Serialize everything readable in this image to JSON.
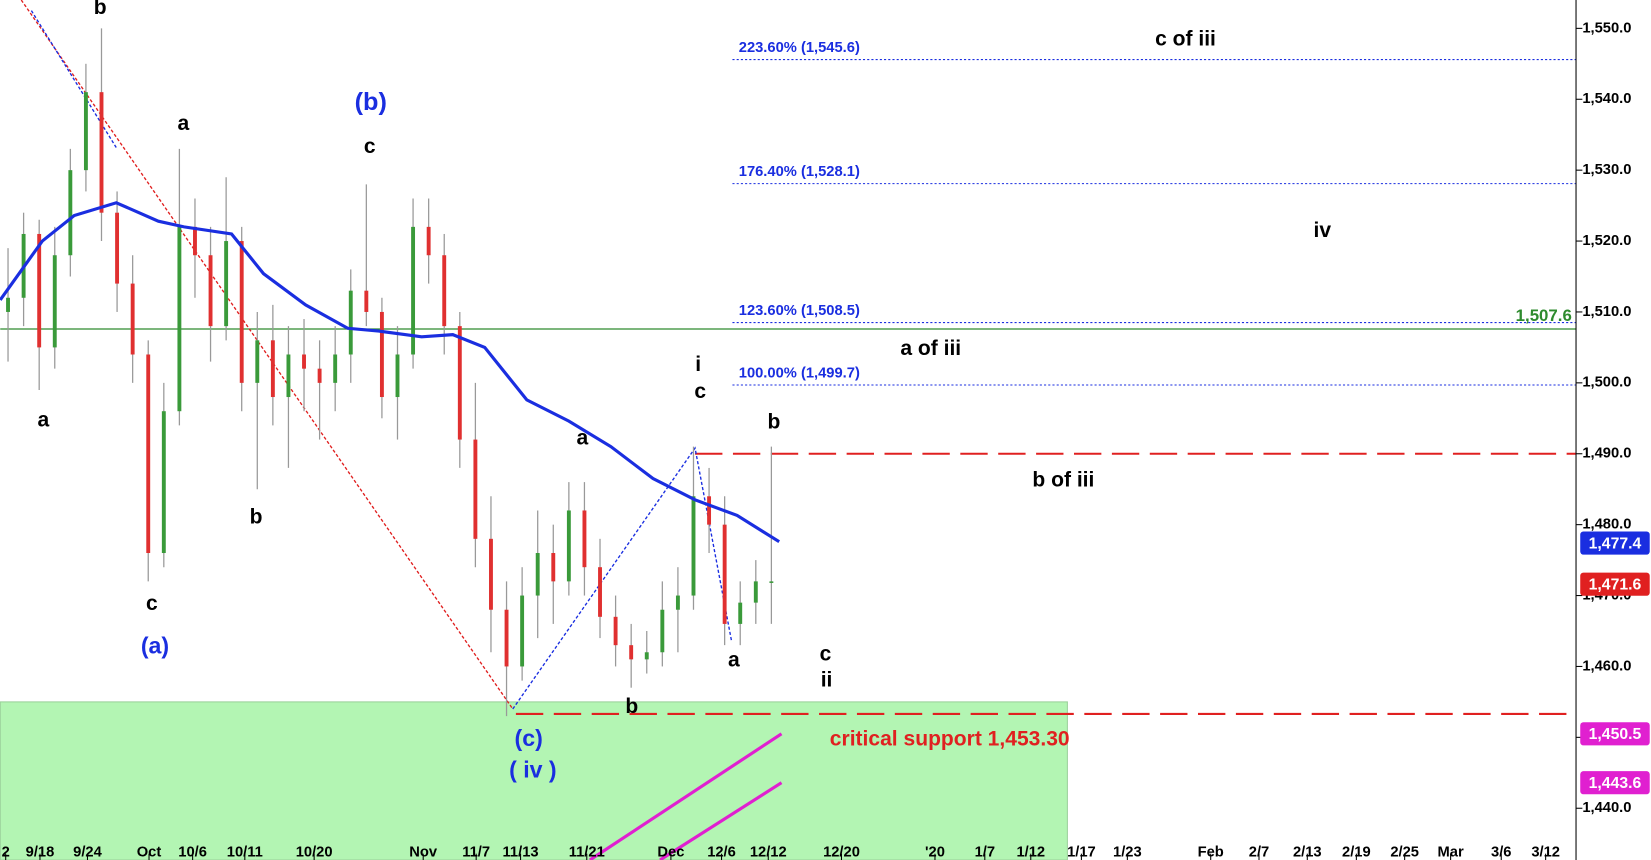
{
  "chart_data": {
    "type": "candlestick",
    "x": [
      1,
      3,
      5,
      7,
      9,
      11,
      13,
      15,
      17,
      19,
      21,
      23,
      25,
      27,
      29,
      31,
      33,
      35,
      37,
      39,
      41,
      43,
      45,
      47,
      49,
      51,
      53,
      55,
      57,
      59,
      61,
      63,
      65,
      67,
      69,
      71,
      73,
      75,
      77,
      79,
      81,
      83,
      85,
      87,
      89,
      91,
      93,
      95,
      97,
      99
    ],
    "candles": [
      [
        1510,
        1519,
        1503,
        1512
      ],
      [
        1512,
        1524,
        1508,
        1521
      ],
      [
        1521,
        1523,
        1499,
        1505
      ],
      [
        1505,
        1522,
        1502,
        1518
      ],
      [
        1518,
        1533,
        1515,
        1530
      ],
      [
        1530,
        1545,
        1527,
        1541
      ],
      [
        1541,
        1550,
        1520,
        1524
      ],
      [
        1524,
        1527,
        1510,
        1514
      ],
      [
        1514,
        1518,
        1500,
        1504
      ],
      [
        1504,
        1506,
        1472,
        1476
      ],
      [
        1476,
        1500,
        1474,
        1496
      ],
      [
        1496,
        1533,
        1494,
        1522
      ],
      [
        1522,
        1526,
        1512,
        1518
      ],
      [
        1518,
        1522,
        1503,
        1508
      ],
      [
        1508,
        1529,
        1506,
        1520
      ],
      [
        1520,
        1522,
        1496,
        1500
      ],
      [
        1500,
        1510,
        1485,
        1506
      ],
      [
        1506,
        1511,
        1494,
        1498
      ],
      [
        1498,
        1508,
        1488,
        1504
      ],
      [
        1504,
        1509,
        1496,
        1502
      ],
      [
        1502,
        1506,
        1492,
        1500
      ],
      [
        1500,
        1508,
        1496,
        1504
      ],
      [
        1504,
        1516,
        1500,
        1513
      ],
      [
        1513,
        1528,
        1508,
        1510
      ],
      [
        1510,
        1512,
        1495,
        1498
      ],
      [
        1498,
        1508,
        1492,
        1504
      ],
      [
        1504,
        1526,
        1502,
        1522
      ],
      [
        1522,
        1526,
        1514,
        1518
      ],
      [
        1518,
        1521,
        1504,
        1508
      ],
      [
        1508,
        1510,
        1488,
        1492
      ],
      [
        1492,
        1500,
        1474,
        1478
      ],
      [
        1478,
        1484,
        1462,
        1468
      ],
      [
        1468,
        1472,
        1453,
        1460
      ],
      [
        1460,
        1474,
        1458,
        1470
      ],
      [
        1470,
        1482,
        1464,
        1476
      ],
      [
        1476,
        1480,
        1466,
        1472
      ],
      [
        1472,
        1486,
        1470,
        1482
      ],
      [
        1482,
        1486,
        1470,
        1474
      ],
      [
        1474,
        1478,
        1464,
        1467
      ],
      [
        1467,
        1470,
        1460,
        1463
      ],
      [
        1463,
        1466,
        1457,
        1461
      ],
      [
        1461,
        1465,
        1459,
        1462
      ],
      [
        1462,
        1472,
        1460,
        1468
      ],
      [
        1468,
        1474,
        1462,
        1470
      ],
      [
        1470,
        1491,
        1468,
        1484
      ],
      [
        1484,
        1488,
        1476,
        1480
      ],
      [
        1480,
        1484,
        1463,
        1466
      ],
      [
        1466,
        1472,
        1463,
        1469
      ],
      [
        1469,
        1475,
        1466,
        1472
      ],
      [
        1472,
        1491,
        1466,
        1472
      ]
    ],
    "up_color": "#3a9a3a",
    "down_color": "#e03030",
    "wick_color": "#999999",
    "xlim": [
      0,
      202.3
    ],
    "ylim": [
      1432.7,
      1554
    ],
    "xticks": [
      {
        "value": 0.7,
        "label": "2"
      },
      {
        "value": 5.1,
        "label": "9/18"
      },
      {
        "value": 11.2,
        "label": "9/24"
      },
      {
        "value": 19.1,
        "label": "Oct"
      },
      {
        "value": 24.7,
        "label": "10/6"
      },
      {
        "value": 31.4,
        "label": "10/11"
      },
      {
        "value": 40.3,
        "label": "10/20"
      },
      {
        "value": 54.3,
        "label": "Nov"
      },
      {
        "value": 61.1,
        "label": "11/7"
      },
      {
        "value": 66.8,
        "label": "11/13"
      },
      {
        "value": 75.3,
        "label": "11/21"
      },
      {
        "value": 86.1,
        "label": "Dec"
      },
      {
        "value": 92.6,
        "label": "12/6"
      },
      {
        "value": 98.6,
        "label": "12/12"
      },
      {
        "value": 108,
        "label": "12/20"
      },
      {
        "value": 120,
        "label": "'20"
      },
      {
        "value": 126.4,
        "label": "1/7"
      },
      {
        "value": 132.3,
        "label": "1/12"
      },
      {
        "value": 138.8,
        "label": "1/17"
      },
      {
        "value": 144.7,
        "label": "1/23"
      },
      {
        "value": 155.4,
        "label": "Feb"
      },
      {
        "value": 161.6,
        "label": "2/7"
      },
      {
        "value": 167.8,
        "label": "2/13"
      },
      {
        "value": 174.1,
        "label": "2/19"
      },
      {
        "value": 180.3,
        "label": "2/25"
      },
      {
        "value": 186.2,
        "label": "Mar"
      },
      {
        "value": 192.7,
        "label": "3/6"
      },
      {
        "value": 198.4,
        "label": "3/12"
      }
    ],
    "yticks": [
      {
        "value": 1440,
        "label": "1,440.0"
      },
      {
        "value": 1450,
        "label": "1,450.0"
      },
      {
        "value": 1460,
        "label": "1,460.0"
      },
      {
        "value": 1470,
        "label": "1,470.0"
      },
      {
        "value": 1480,
        "label": "1,480.0"
      },
      {
        "value": 1490,
        "label": "1,490.0"
      },
      {
        "value": 1500,
        "label": "1,500.0"
      },
      {
        "value": 1510,
        "label": "1,510.0"
      },
      {
        "value": 1520,
        "label": "1,520.0"
      },
      {
        "value": 1530,
        "label": "1,530.0"
      },
      {
        "value": 1540,
        "label": "1,540.0"
      },
      {
        "value": 1550,
        "label": "1,550.0"
      }
    ],
    "ma": {
      "color": "#1a2ee0",
      "x": [
        0,
        5.4,
        9.5,
        14.9,
        20.3,
        23.6,
        29.7,
        33.8,
        39.2,
        44.6,
        48.6,
        54.1,
        58.1,
        62.2,
        67.6,
        73,
        78.4,
        83.8,
        89.2,
        94.6,
        100
      ],
      "values": [
        1511.7,
        1520,
        1523.6,
        1525.4,
        1522.8,
        1522,
        1521,
        1515.4,
        1511,
        1507.7,
        1507.3,
        1506.5,
        1506.8,
        1505,
        1497.6,
        1494.6,
        1491,
        1486.5,
        1483.5,
        1481.3,
        1477.6
      ]
    },
    "zone": {
      "color": "#b3f5b3",
      "x": [
        0,
        137
      ],
      "y": [
        1432.7,
        1455
      ]
    },
    "levels": [
      {
        "value": 1507.6,
        "label": "1,507.6",
        "color": "#2e8b2e",
        "style": "solid",
        "from": 0
      },
      {
        "value": 1490,
        "color": "#e02020",
        "style": "dashed",
        "from": 89.2
      },
      {
        "value": 1453.3,
        "color": "#e02020",
        "style": "dashed",
        "from": 66.2
      }
    ],
    "fib_levels": [
      {
        "value": 1545.6,
        "label": "223.60% (1,545.6)"
      },
      {
        "value": 1528.1,
        "label": "176.40% (1,528.1)"
      },
      {
        "value": 1508.5,
        "label": "123.60% (1,508.5)"
      },
      {
        "value": 1499.7,
        "label": "100.00% (1,499.7)"
      }
    ],
    "fib_color": "#1a2ee0",
    "fib_from": 94,
    "trendlines": [
      {
        "color": "#e02020",
        "x": [
          2.7,
          65.8
        ],
        "values": [
          1554,
          1454
        ]
      },
      {
        "color": "#1a2ee0",
        "x": [
          4,
          15
        ],
        "values": [
          1552.5,
          1533
        ]
      },
      {
        "color": "#1a2ee0",
        "x": [
          65.8,
          89.2,
          93.9
        ],
        "values": [
          1454,
          1490.8,
          1463.5
        ]
      }
    ],
    "channels": [
      {
        "color": "#e020d0",
        "x": [
          75.7,
          100.3
        ],
        "values": [
          1432.7,
          1450.5
        ]
      },
      {
        "color": "#e020d0",
        "x": [
          84.7,
          100.3
        ],
        "values": [
          1432.7,
          1443.6
        ]
      }
    ],
    "price_tags": [
      {
        "value": 1477.4,
        "label": "1,477.4",
        "color": "#1a2ee0"
      },
      {
        "value": 1471.6,
        "label": "1,471.6",
        "color": "#e02020"
      },
      {
        "value": 1450.5,
        "label": "1,450.5",
        "color": "#e020d0"
      },
      {
        "value": 1443.6,
        "label": "1,443.6",
        "color": "#e020d0"
      }
    ],
    "annotations": [
      {
        "text": "b",
        "color": "#000"
      },
      {
        "text": "a",
        "color": "#000"
      },
      {
        "text": "(b)",
        "color": "#1a2ee0"
      },
      {
        "text": "c",
        "color": "#000"
      },
      {
        "text": "a",
        "color": "#000"
      },
      {
        "text": "b",
        "color": "#000"
      },
      {
        "text": "c",
        "color": "#000"
      },
      {
        "text": "(a)",
        "color": "#1a2ee0"
      },
      {
        "text": "a",
        "color": "#000"
      },
      {
        "text": "i",
        "color": "#000"
      },
      {
        "text": "c",
        "color": "#000"
      },
      {
        "text": "b",
        "color": "#000"
      },
      {
        "text": "a",
        "color": "#000"
      },
      {
        "text": "b",
        "color": "#000"
      },
      {
        "text": "c",
        "color": "#000"
      },
      {
        "text": "ii",
        "color": "#000"
      },
      {
        "text": "(c)",
        "color": "#1a2ee0"
      },
      {
        "text": "( iv )",
        "color": "#1a2ee0"
      },
      {
        "text": "critical support 1,453.30",
        "color": "#e02020"
      },
      {
        "text": "c of iii",
        "color": "#000"
      },
      {
        "text": "iv",
        "color": "#000"
      },
      {
        "text": "a of iii",
        "color": "#000"
      },
      {
        "text": "b of iii",
        "color": "#000"
      }
    ]
  }
}
